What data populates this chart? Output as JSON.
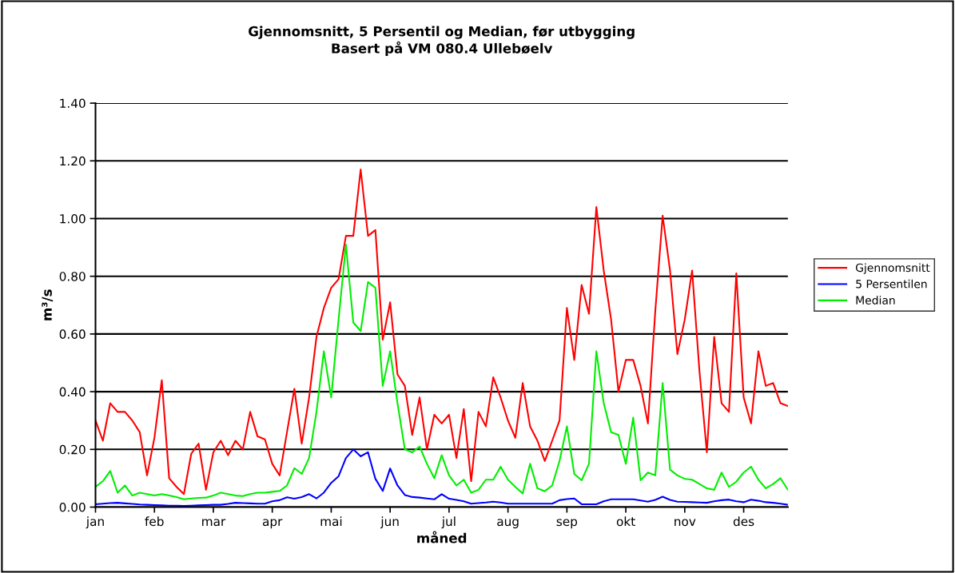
{
  "chart_data": {
    "type": "line",
    "title": "Gjennomsnitt, 5 Persentil og Median, før utbygging\nBasert på VM 080.4 Ullebøelv",
    "xlabel": "måned",
    "ylabel": "m³/s",
    "categories": [
      "jan",
      null,
      null,
      null,
      null,
      null,
      null,
      null,
      "feb",
      null,
      null,
      null,
      null,
      null,
      null,
      null,
      "mar",
      null,
      null,
      null,
      null,
      null,
      null,
      null,
      "apr",
      null,
      null,
      null,
      null,
      null,
      null,
      null,
      "mai",
      null,
      null,
      null,
      null,
      null,
      null,
      null,
      "jun",
      null,
      null,
      null,
      null,
      null,
      null,
      null,
      "jul",
      null,
      null,
      null,
      null,
      null,
      null,
      null,
      "aug",
      null,
      null,
      null,
      null,
      null,
      null,
      null,
      "sep",
      null,
      null,
      null,
      null,
      null,
      null,
      null,
      "okt",
      null,
      null,
      null,
      null,
      null,
      null,
      null,
      "nov",
      null,
      null,
      null,
      null,
      null,
      null,
      null,
      "des",
      null,
      null,
      null,
      null,
      null,
      null
    ],
    "ylim": [
      0,
      1.4
    ],
    "yticks": [
      {
        "value": 0,
        "label": "0.00"
      },
      {
        "value": 0.2,
        "label": "0.20"
      },
      {
        "value": 0.4,
        "label": "0.40"
      },
      {
        "value": 0.6,
        "label": "0.60"
      },
      {
        "value": 0.8,
        "label": "0.80"
      },
      {
        "value": 1.0,
        "label": "1.00"
      },
      {
        "value": 1.2,
        "label": "1.20"
      },
      {
        "value": 1.4,
        "label": "1.40"
      }
    ],
    "grid": "y",
    "legend": "right",
    "line_style": "solid",
    "series": [
      {
        "name": "Gjennomsnitt",
        "color": "#ff0000",
        "values": [
          0.3,
          0.23,
          0.36,
          0.33,
          0.33,
          0.3,
          0.26,
          0.11,
          0.24,
          0.44,
          0.1,
          0.07,
          0.045,
          0.185,
          0.22,
          0.06,
          0.19,
          0.23,
          0.18,
          0.23,
          0.2,
          0.33,
          0.245,
          0.235,
          0.15,
          0.11,
          0.26,
          0.41,
          0.22,
          0.38,
          0.59,
          0.69,
          0.76,
          0.79,
          0.94,
          0.94,
          1.17,
          0.94,
          0.96,
          0.58,
          0.71,
          0.46,
          0.42,
          0.25,
          0.38,
          0.2,
          0.32,
          0.29,
          0.32,
          0.17,
          0.34,
          0.09,
          0.33,
          0.28,
          0.45,
          0.38,
          0.3,
          0.24,
          0.43,
          0.28,
          0.23,
          0.16,
          0.23,
          0.3,
          0.69,
          0.51,
          0.77,
          0.67,
          1.04,
          0.82,
          0.65,
          0.4,
          0.51,
          0.51,
          0.42,
          0.29,
          0.68,
          1.01,
          0.82,
          0.53,
          0.65,
          0.82,
          0.47,
          0.19,
          0.59,
          0.36,
          0.33,
          0.81,
          0.38,
          0.29,
          0.54,
          0.42,
          0.43,
          0.36,
          0.35
        ]
      },
      {
        "name": "5 Persentilen",
        "color": "#0000ff",
        "values": [
          0.01,
          0.012,
          0.014,
          0.015,
          0.013,
          0.011,
          0.009,
          0.008,
          0.007,
          0.006,
          0.005,
          0.005,
          0.004,
          0.005,
          0.006,
          0.007,
          0.008,
          0.008,
          0.011,
          0.015,
          0.014,
          0.013,
          0.012,
          0.012,
          0.02,
          0.024,
          0.034,
          0.029,
          0.035,
          0.045,
          0.03,
          0.05,
          0.084,
          0.107,
          0.17,
          0.2,
          0.176,
          0.19,
          0.098,
          0.056,
          0.134,
          0.075,
          0.042,
          0.035,
          0.033,
          0.03,
          0.027,
          0.045,
          0.029,
          0.025,
          0.02,
          0.012,
          0.014,
          0.016,
          0.019,
          0.016,
          0.012,
          0.012,
          0.012,
          0.012,
          0.012,
          0.012,
          0.012,
          0.024,
          0.028,
          0.03,
          0.01,
          0.01,
          0.01,
          0.02,
          0.027,
          0.027,
          0.027,
          0.027,
          0.023,
          0.019,
          0.025,
          0.036,
          0.025,
          0.019,
          0.018,
          0.017,
          0.016,
          0.015,
          0.02,
          0.024,
          0.026,
          0.02,
          0.017,
          0.026,
          0.022,
          0.017,
          0.015,
          0.012,
          0.008
        ]
      },
      {
        "name": "Median",
        "color": "#00ee00",
        "values": [
          0.07,
          0.09,
          0.125,
          0.05,
          0.075,
          0.04,
          0.05,
          0.045,
          0.04,
          0.045,
          0.04,
          0.035,
          0.027,
          0.03,
          0.032,
          0.033,
          0.04,
          0.05,
          0.045,
          0.04,
          0.038,
          0.045,
          0.05,
          0.05,
          0.053,
          0.056,
          0.075,
          0.135,
          0.115,
          0.17,
          0.33,
          0.54,
          0.38,
          0.65,
          0.91,
          0.64,
          0.61,
          0.78,
          0.76,
          0.42,
          0.54,
          0.36,
          0.2,
          0.19,
          0.21,
          0.15,
          0.1,
          0.18,
          0.11,
          0.075,
          0.095,
          0.05,
          0.06,
          0.095,
          0.095,
          0.14,
          0.095,
          0.07,
          0.047,
          0.15,
          0.065,
          0.055,
          0.075,
          0.16,
          0.28,
          0.115,
          0.093,
          0.15,
          0.54,
          0.36,
          0.26,
          0.25,
          0.15,
          0.31,
          0.093,
          0.12,
          0.11,
          0.43,
          0.13,
          0.11,
          0.098,
          0.095,
          0.08,
          0.065,
          0.06,
          0.12,
          0.07,
          0.088,
          0.12,
          0.14,
          0.095,
          0.065,
          0.08,
          0.1,
          0.06
        ]
      }
    ]
  }
}
